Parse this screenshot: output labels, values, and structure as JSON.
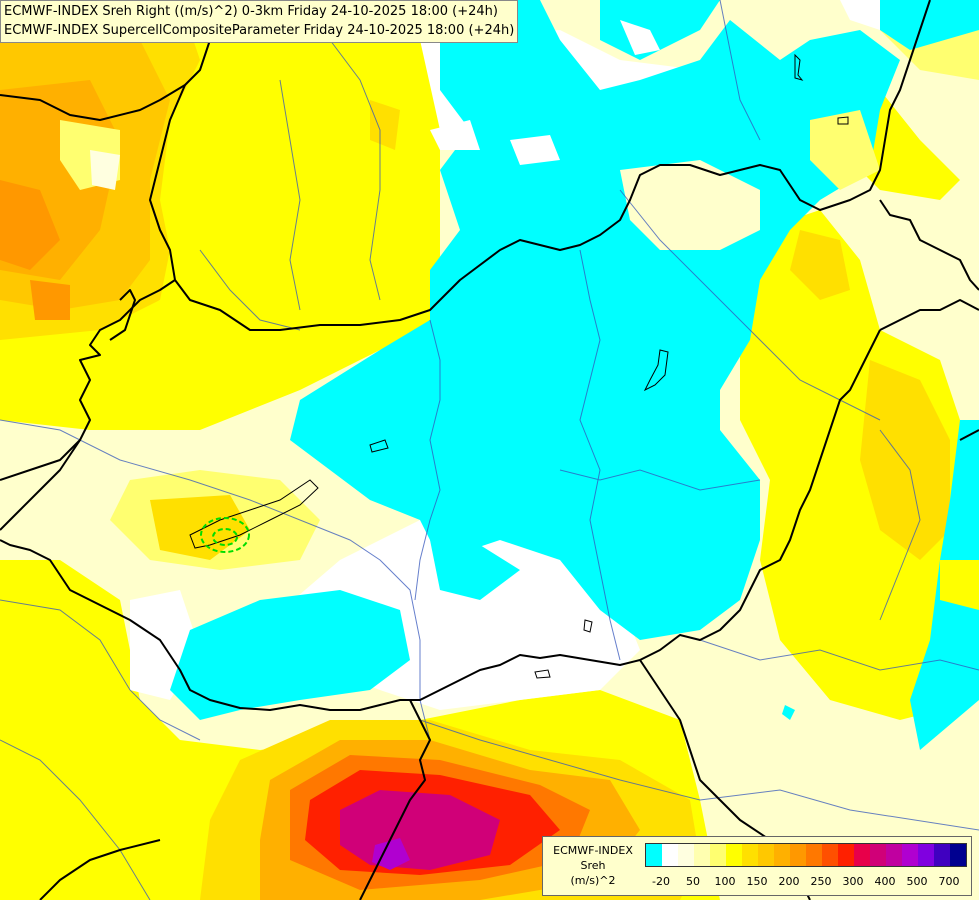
{
  "title": {
    "line1": "ECMWF-INDEX Sreh Right ((m/s)^2) 0-3km Friday 24-10-2025 18:00 (+24h)",
    "line2": "ECMWF-INDEX SupercellCompositeParameter Friday 24-10-2025 18:00 (+24h)"
  },
  "legend": {
    "line1": "ECMWF-INDEX",
    "line2": "Sreh",
    "line3": "(m/s)^2",
    "colors": [
      "#00ffff",
      "#ffffff",
      "#ffffe0",
      "#ffffb0",
      "#ffff70",
      "#ffff00",
      "#ffe000",
      "#ffc800",
      "#ffb000",
      "#ff9800",
      "#ff7800",
      "#ff5000",
      "#ff2000",
      "#e8004a",
      "#d00078",
      "#c000a0",
      "#b000d0",
      "#8000e0",
      "#4000c0",
      "#000090"
    ],
    "ticks": [
      "-20",
      "50",
      "100",
      "150",
      "200",
      "250",
      "300",
      "400",
      "500",
      "700"
    ]
  },
  "icons": {
    "map": "forecast-map",
    "borders": "country-borders",
    "rivers": "rivers",
    "contour": "supercell-contour"
  },
  "colors": {
    "cyan": "#00ffff",
    "white": "#ffffff",
    "pale": "#ffffcc",
    "yellow": "#ffff00",
    "gold": "#ffe000",
    "orange": "#ffb000",
    "deep_orange": "#ff7800",
    "red": "#ff2000",
    "magenta": "#d00078",
    "purple": "#b000d0",
    "border": "#000000",
    "river": "#2c4fbf",
    "contour": "#00dd00"
  }
}
